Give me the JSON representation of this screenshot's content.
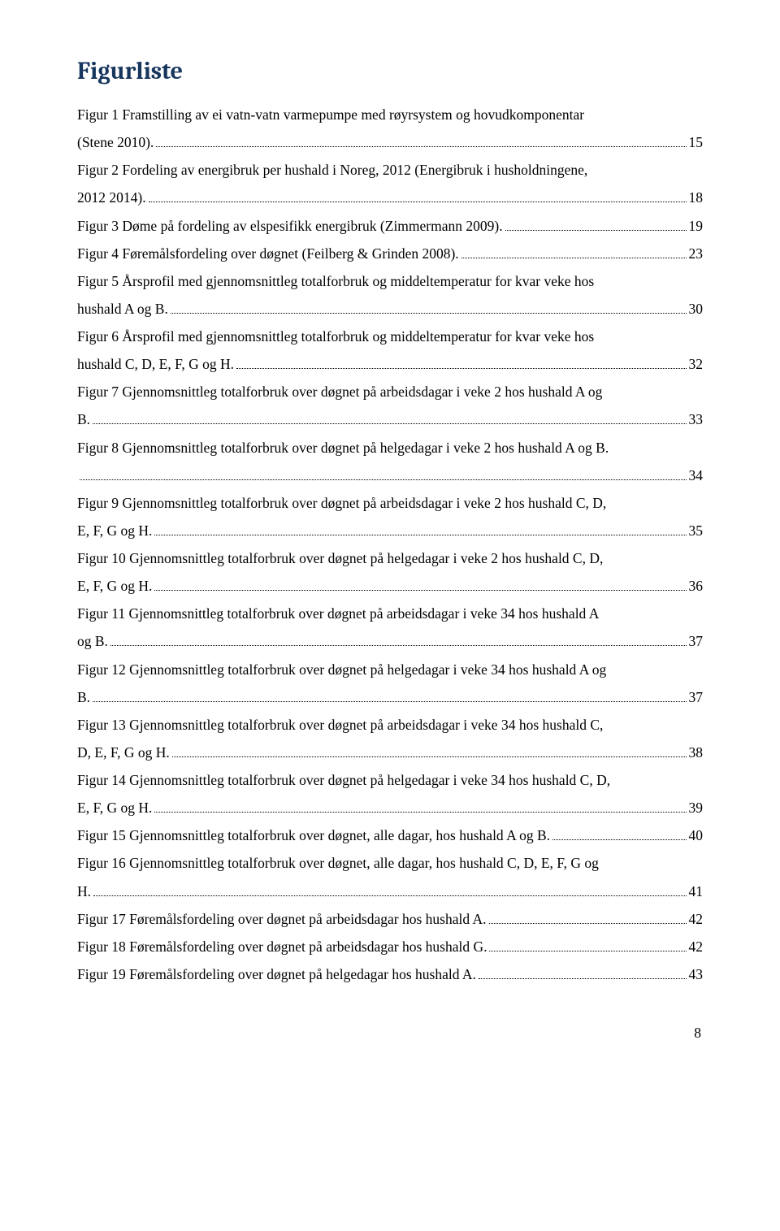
{
  "heading": "Figurliste",
  "pageNumber": "8",
  "entries": [
    {
      "lines": [
        "Figur 1 Framstilling av ei vatn-vatn varmepumpe med røyrsystem og hovudkomponentar"
      ],
      "last": "(Stene 2010).",
      "page": "15"
    },
    {
      "lines": [
        "Figur 2 Fordeling av energibruk per hushald i Noreg, 2012 (Energibruk i husholdningene,"
      ],
      "last": "2012 2014).",
      "page": "18"
    },
    {
      "lines": [],
      "last": "Figur 3 Døme på fordeling av elspesifikk energibruk (Zimmermann 2009). ",
      "page": "19"
    },
    {
      "lines": [],
      "last": "Figur 4 Føremålsfordeling over døgnet (Feilberg & Grinden 2008).",
      "page": "23"
    },
    {
      "lines": [
        "Figur 5 Årsprofil med gjennomsnittleg totalforbruk og middeltemperatur for kvar veke hos"
      ],
      "last": "hushald A og B. ",
      "page": "30"
    },
    {
      "lines": [
        "Figur 6 Årsprofil med gjennomsnittleg totalforbruk og middeltemperatur for kvar veke hos"
      ],
      "last": "hushald C, D, E, F, G og H. ",
      "page": "32"
    },
    {
      "lines": [
        "Figur 7 Gjennomsnittleg totalforbruk over døgnet på arbeidsdagar i veke 2 hos hushald A og"
      ],
      "last": "B.",
      "page": "33"
    },
    {
      "lines": [
        "Figur 8 Gjennomsnittleg totalforbruk over døgnet på helgedagar i veke 2 hos hushald A og B."
      ],
      "last": "",
      "page": "34"
    },
    {
      "lines": [
        "Figur 9 Gjennomsnittleg totalforbruk over døgnet på arbeidsdagar i veke 2 hos hushald C, D,"
      ],
      "last": "E, F, G og H.",
      "page": "35"
    },
    {
      "lines": [
        "Figur 10 Gjennomsnittleg totalforbruk over døgnet på helgedagar i veke 2 hos hushald C, D,"
      ],
      "last": "E, F, G og H.",
      "page": "36"
    },
    {
      "lines": [
        "Figur 11 Gjennomsnittleg totalforbruk over døgnet på arbeidsdagar i veke 34 hos hushald A"
      ],
      "last": "og B.",
      "page": "37"
    },
    {
      "lines": [
        "Figur 12 Gjennomsnittleg totalforbruk over døgnet på helgedagar i veke 34 hos hushald A og"
      ],
      "last": "B.",
      "page": "37"
    },
    {
      "lines": [
        "Figur 13 Gjennomsnittleg totalforbruk over døgnet på arbeidsdagar i veke 34 hos hushald C,"
      ],
      "last": "D, E, F, G og H.",
      "page": "38"
    },
    {
      "lines": [
        "Figur 14 Gjennomsnittleg totalforbruk over døgnet på helgedagar i veke 34 hos hushald C, D,"
      ],
      "last": "E, F, G og H.",
      "page": "39"
    },
    {
      "lines": [],
      "last": "Figur 15 Gjennomsnittleg totalforbruk over døgnet, alle dagar, hos hushald A og B. ",
      "page": "40"
    },
    {
      "lines": [
        "Figur 16 Gjennomsnittleg totalforbruk over døgnet, alle dagar, hos hushald C, D, E, F, G og"
      ],
      "last": "H.",
      "page": "41"
    },
    {
      "lines": [],
      "last": "Figur 17 Føremålsfordeling over døgnet på arbeidsdagar hos hushald A.",
      "page": "42"
    },
    {
      "lines": [],
      "last": "Figur 18 Føremålsfordeling over døgnet på arbeidsdagar hos hushald G.",
      "page": "42"
    },
    {
      "lines": [],
      "last": "Figur 19 Føremålsfordeling over døgnet på helgedagar hos hushald A.",
      "page": "43"
    }
  ]
}
